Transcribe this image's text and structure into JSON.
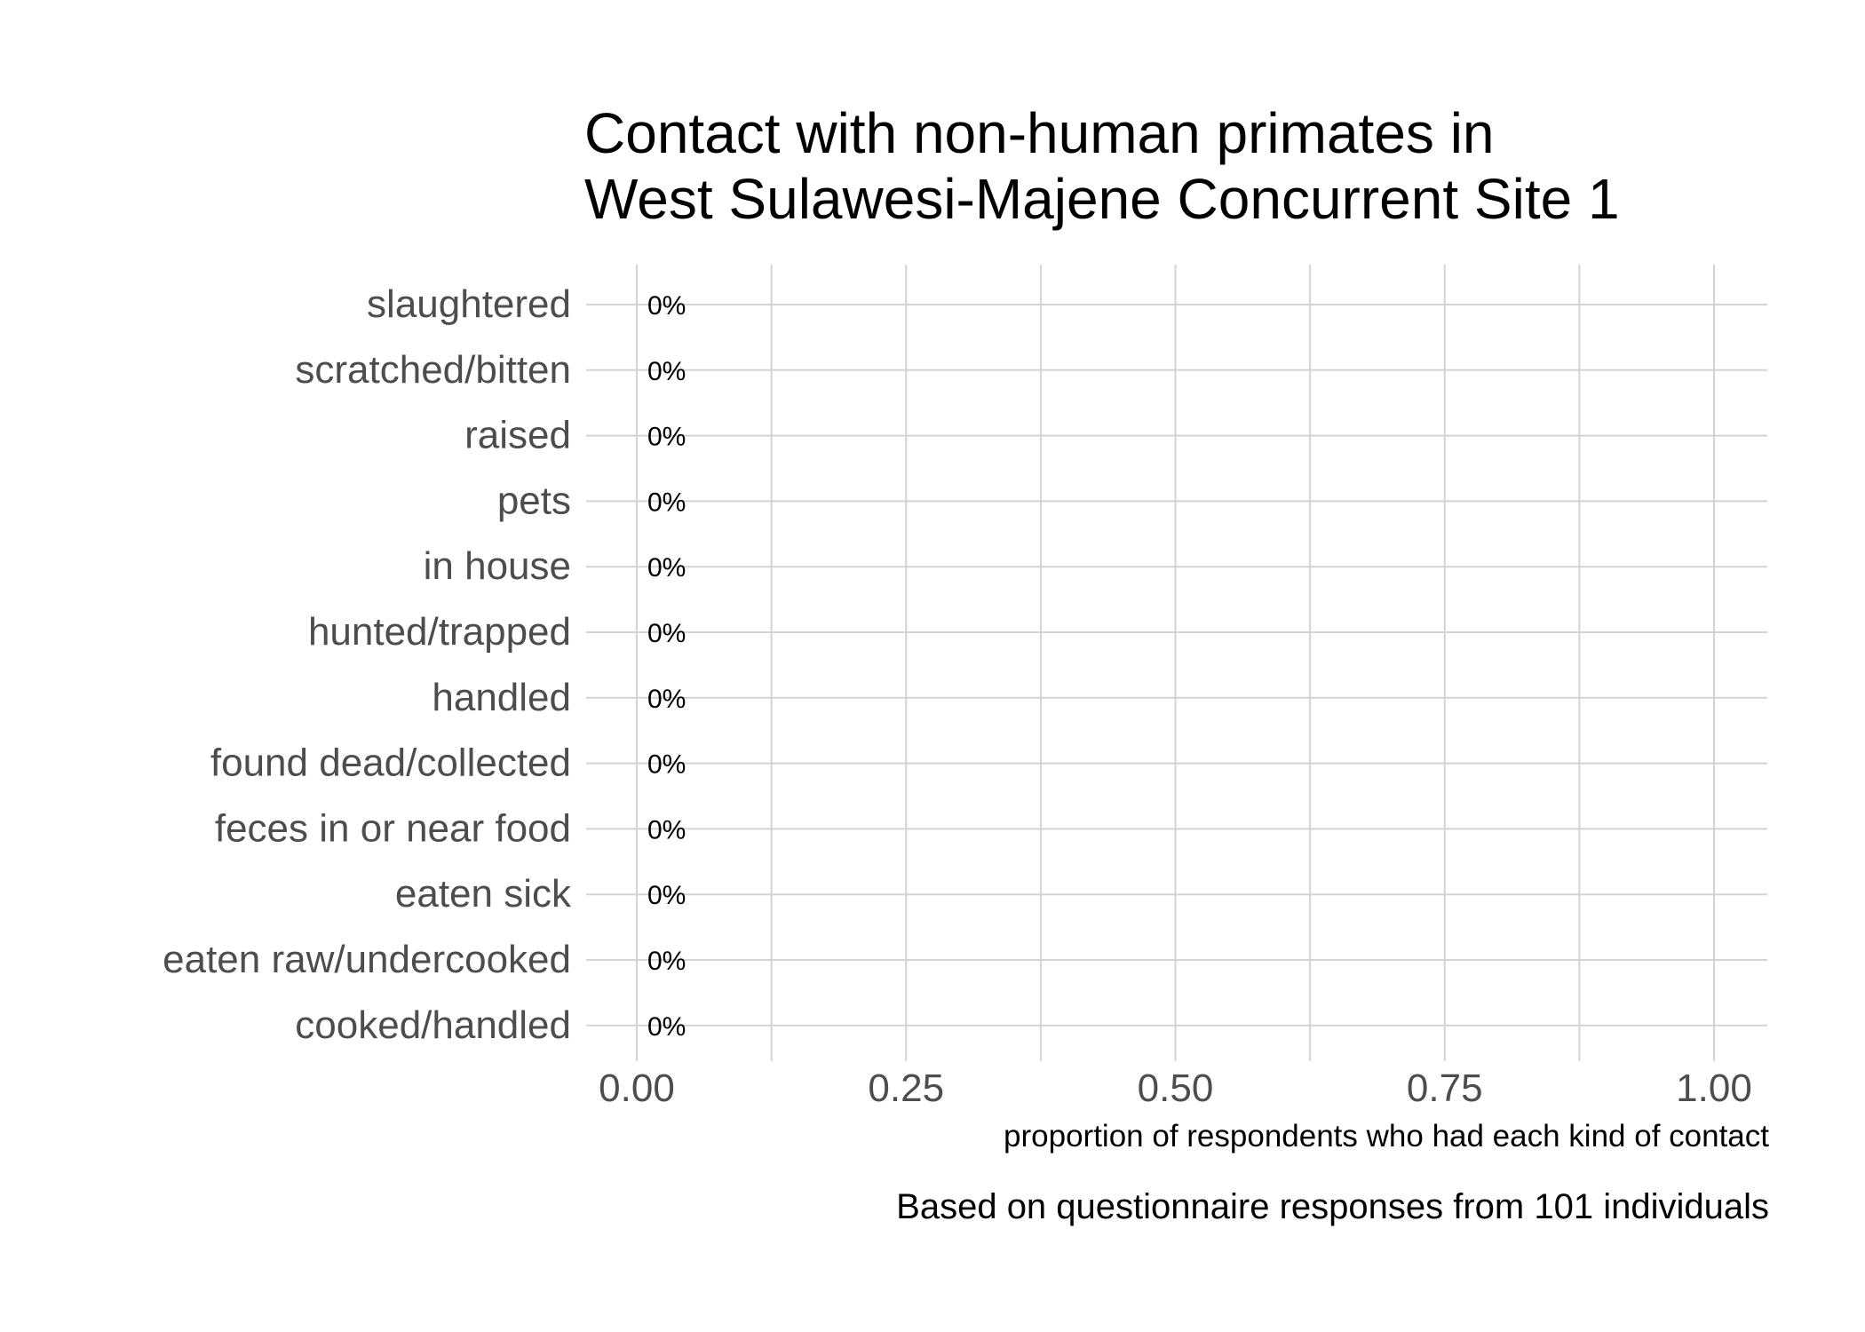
{
  "chart_data": {
    "type": "bar",
    "orientation": "horizontal",
    "title_lines": [
      "Contact with non-human primates in",
      "West Sulawesi-Majene Concurrent Site 1"
    ],
    "xlabel": "proportion of respondents who had each kind of contact",
    "ylabel": "",
    "caption": "Based on questionnaire responses from 101 individuals",
    "xlim": [
      0,
      1
    ],
    "x_ticks": [
      "0.00",
      "0.25",
      "0.50",
      "0.75",
      "1.00"
    ],
    "x_tick_values": [
      0,
      0.25,
      0.5,
      0.75,
      1
    ],
    "categories": [
      "slaughtered",
      "scratched/bitten",
      "raised",
      "pets",
      "in house",
      "hunted/trapped",
      "handled",
      "found dead/collected",
      "feces in or near food",
      "eaten sick",
      "eaten raw/undercooked",
      "cooked/handled"
    ],
    "values": [
      0,
      0,
      0,
      0,
      0,
      0,
      0,
      0,
      0,
      0,
      0,
      0
    ],
    "data_labels": [
      "0%",
      "0%",
      "0%",
      "0%",
      "0%",
      "0%",
      "0%",
      "0%",
      "0%",
      "0%",
      "0%",
      "0%"
    ],
    "grid": true,
    "legend": "none",
    "colors": {
      "grid": "#d4d4d4",
      "tick_label": "#4d4d4d",
      "data_label": "#000000",
      "bar": "#4d4d4d"
    }
  }
}
